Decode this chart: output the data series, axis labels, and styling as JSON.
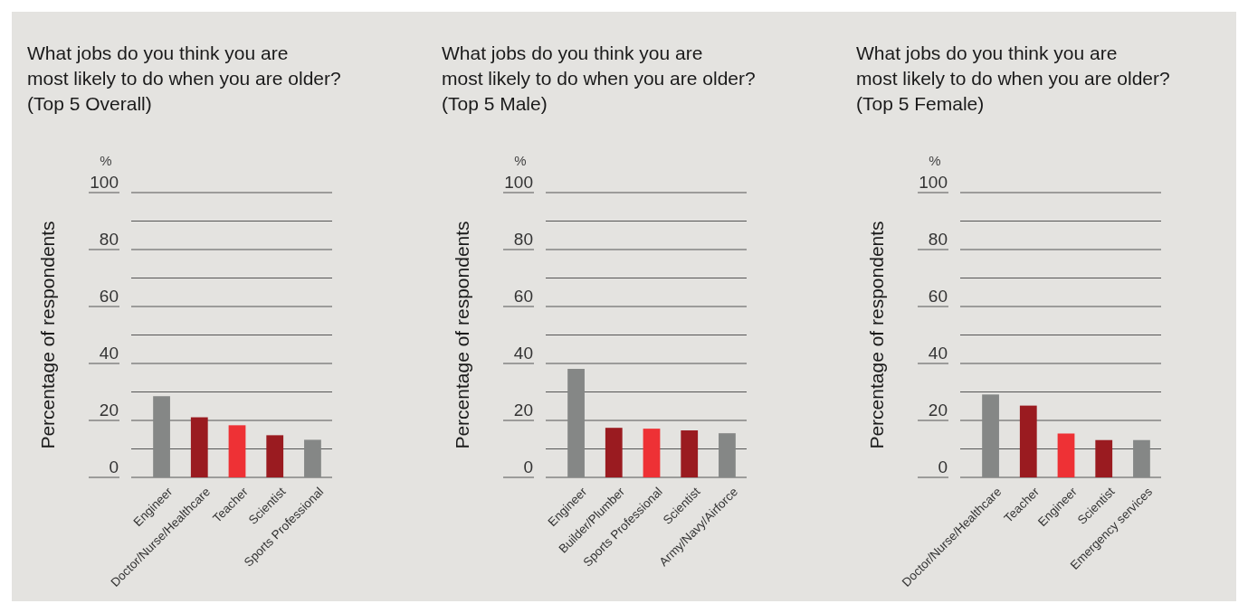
{
  "chart_data": [
    {
      "type": "bar",
      "title": "What jobs do you think you are\nmost likely to do when you are older?\n(Top 5 Overall)",
      "ylabel": "Percentage of respondents",
      "annotations": [
        "%"
      ],
      "categories": [
        "Engineer",
        "Doctor/Nurse/Healthcare",
        "Teacher",
        "Scientist",
        "Sports Professional"
      ],
      "values": [
        28.5,
        21.1,
        18.3,
        14.8,
        13.2
      ],
      "colors": [
        "#858786",
        "#9a1b20",
        "#ee3135",
        "#9a1b20",
        "#858786"
      ],
      "ylim": [
        0,
        100
      ],
      "yticks": [
        0,
        {
          "value": 10,
          "label": null
        },
        20,
        {
          "value": 30,
          "label": null
        },
        40,
        {
          "value": 50,
          "label": null
        },
        60,
        {
          "value": 70,
          "label": null
        },
        80,
        {
          "value": 90,
          "label": null
        },
        100
      ],
      "grid": "y"
    },
    {
      "type": "bar",
      "title": "What jobs do you think you are\nmost likely to do when you are older?\n(Top 5 Male)",
      "ylabel": "Percentage of respondents",
      "annotations": [
        "%"
      ],
      "categories": [
        "Engineer",
        "Builder/Plumber",
        "Sports Professional",
        "Scientist",
        "Army/Navy/Airforce"
      ],
      "values": [
        38.1,
        17.4,
        17.1,
        16.5,
        15.5
      ],
      "colors": [
        "#858786",
        "#9a1b20",
        "#ee3135",
        "#9a1b20",
        "#858786"
      ],
      "ylim": [
        0,
        100
      ],
      "yticks": [
        0,
        {
          "value": 10,
          "label": null
        },
        20,
        {
          "value": 30,
          "label": null
        },
        40,
        {
          "value": 50,
          "label": null
        },
        60,
        {
          "value": 70,
          "label": null
        },
        80,
        {
          "value": 90,
          "label": null
        },
        100
      ],
      "grid": "y"
    },
    {
      "type": "bar",
      "title": "What jobs do you think you are\nmost likely to do when you are older?\n(Top 5 Female)",
      "ylabel": "Percentage of respondents",
      "annotations": [
        "%"
      ],
      "categories": [
        "Doctor/Nurse/Healthcare",
        "Teacher",
        "Engineer",
        "Scientist",
        "Emergency services"
      ],
      "values": [
        29.1,
        25.2,
        15.4,
        13.1,
        13.1
      ],
      "colors": [
        "#858786",
        "#9a1b20",
        "#ee3135",
        "#9a1b20",
        "#858786"
      ],
      "ylim": [
        0,
        100
      ],
      "yticks": [
        0,
        {
          "value": 10,
          "label": null
        },
        20,
        {
          "value": 30,
          "label": null
        },
        40,
        {
          "value": 50,
          "label": null
        },
        60,
        {
          "value": 70,
          "label": null
        },
        80,
        {
          "value": 90,
          "label": null
        },
        100
      ],
      "grid": "y"
    }
  ]
}
